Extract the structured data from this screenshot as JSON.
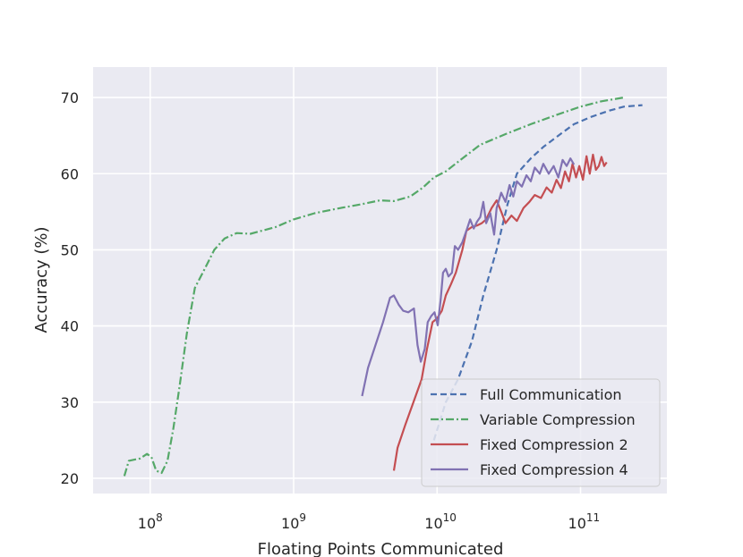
{
  "chart_data": {
    "type": "line",
    "title": "",
    "xlabel": "Floating Points Communicated",
    "ylabel": "Accuracy (%)",
    "xscale": "log",
    "xlim": [
      40000000.0,
      400000000000.0
    ],
    "ylim": [
      18,
      74
    ],
    "x_ticks": [
      {
        "value": 100000000.0,
        "base": "10",
        "exp": "8"
      },
      {
        "value": 1000000000.0,
        "base": "10",
        "exp": "9"
      },
      {
        "value": 10000000000.0,
        "base": "10",
        "exp": "10"
      },
      {
        "value": 100000000000.0,
        "base": "10",
        "exp": "11"
      }
    ],
    "y_ticks": [
      20,
      30,
      40,
      50,
      60,
      70
    ],
    "grid": true,
    "background": "#eaeaf2",
    "legend_position": "lower right",
    "series": [
      {
        "name": "Full Communication",
        "color": "#4c72b0",
        "dash": "dashed",
        "points": [
          [
            9500000000.0,
            25
          ],
          [
            11500000000.0,
            30
          ],
          [
            14000000000.0,
            33
          ],
          [
            17500000000.0,
            38
          ],
          [
            21000000000.0,
            44
          ],
          [
            26000000000.0,
            50
          ],
          [
            31000000000.0,
            56
          ],
          [
            36000000000.0,
            60
          ],
          [
            45000000000.0,
            62
          ],
          [
            55000000000.0,
            63.5
          ],
          [
            70000000000.0,
            65
          ],
          [
            90000000000.0,
            66.5
          ],
          [
            120000000000.0,
            67.5
          ],
          [
            160000000000.0,
            68.3
          ],
          [
            200000000000.0,
            68.8
          ],
          [
            270000000000.0,
            69
          ]
        ]
      },
      {
        "name": "Variable Compression",
        "color": "#55a868",
        "dash": "dashdot",
        "points": [
          [
            66000000.0,
            20.3
          ],
          [
            71000000.0,
            22.3
          ],
          [
            85000000.0,
            22.6
          ],
          [
            95000000.0,
            23.2
          ],
          [
            102000000.0,
            22.8
          ],
          [
            110000000.0,
            21
          ],
          [
            120000000.0,
            20.7
          ],
          [
            132000000.0,
            22.3
          ],
          [
            145000000.0,
            26.5
          ],
          [
            160000000.0,
            32
          ],
          [
            180000000.0,
            39
          ],
          [
            205000000.0,
            45
          ],
          [
            240000000.0,
            47.5
          ],
          [
            280000000.0,
            50
          ],
          [
            330000000.0,
            51.5
          ],
          [
            400000000.0,
            52.2
          ],
          [
            500000000.0,
            52.1
          ],
          [
            600000000.0,
            52.5
          ],
          [
            750000000.0,
            53
          ],
          [
            1000000000.0,
            54
          ],
          [
            1400000000.0,
            54.8
          ],
          [
            2000000000.0,
            55.4
          ],
          [
            3000000000.0,
            56
          ],
          [
            4000000000.0,
            56.5
          ],
          [
            5000000000.0,
            56.4
          ],
          [
            6500000000.0,
            57
          ],
          [
            8000000000.0,
            58.2
          ],
          [
            9500000000.0,
            59.5
          ],
          [
            11500000000.0,
            60.3
          ],
          [
            15000000000.0,
            62
          ],
          [
            20000000000.0,
            63.8
          ],
          [
            30000000000.0,
            65.2
          ],
          [
            45000000000.0,
            66.5
          ],
          [
            70000000000.0,
            67.8
          ],
          [
            100000000000.0,
            68.8
          ],
          [
            140000000000.0,
            69.5
          ],
          [
            200000000000.0,
            70
          ]
        ]
      },
      {
        "name": "Fixed Compression 2",
        "color": "#c44e52",
        "dash": "solid",
        "points": [
          [
            5000000000.0,
            21
          ],
          [
            5300000000.0,
            24
          ],
          [
            6000000000.0,
            27
          ],
          [
            7000000000.0,
            30.5
          ],
          [
            7800000000.0,
            33
          ],
          [
            8500000000.0,
            37
          ],
          [
            9300000000.0,
            40.5
          ],
          [
            10000000000.0,
            41
          ],
          [
            10800000000.0,
            42
          ],
          [
            11500000000.0,
            44
          ],
          [
            12500000000.0,
            45.5
          ],
          [
            13500000000.0,
            47
          ],
          [
            15000000000.0,
            50
          ],
          [
            16000000000.0,
            52.5
          ],
          [
            17500000000.0,
            53
          ],
          [
            19000000000.0,
            53.2
          ],
          [
            20500000000.0,
            53.5
          ],
          [
            22000000000.0,
            54
          ],
          [
            24000000000.0,
            55.5
          ],
          [
            26000000000.0,
            56.5
          ],
          [
            28000000000.0,
            55
          ],
          [
            30000000000.0,
            53.5
          ],
          [
            33000000000.0,
            54.5
          ],
          [
            36000000000.0,
            53.8
          ],
          [
            40000000000.0,
            55.5
          ],
          [
            44000000000.0,
            56.3
          ],
          [
            48000000000.0,
            57.2
          ],
          [
            53000000000.0,
            56.8
          ],
          [
            58000000000.0,
            58.2
          ],
          [
            63000000000.0,
            57.5
          ],
          [
            68000000000.0,
            59.2
          ],
          [
            73000000000.0,
            58.1
          ],
          [
            78000000000.0,
            60.3
          ],
          [
            83000000000.0,
            59
          ],
          [
            88000000000.0,
            61.3
          ],
          [
            93000000000.0,
            59.5
          ],
          [
            98000000000.0,
            61
          ],
          [
            104000000000.0,
            59.2
          ],
          [
            110000000000.0,
            62.3
          ],
          [
            116000000000.0,
            60
          ],
          [
            122000000000.0,
            62.5
          ],
          [
            128000000000.0,
            60.5
          ],
          [
            134000000000.0,
            61
          ],
          [
            140000000000.0,
            62.2
          ],
          [
            146000000000.0,
            61
          ],
          [
            152000000000.0,
            61.5
          ]
        ]
      },
      {
        "name": "Fixed Compression 4",
        "color": "#8172b3",
        "dash": "solid",
        "points": [
          [
            3000000000.0,
            30.8
          ],
          [
            3300000000.0,
            34.5
          ],
          [
            3800000000.0,
            38
          ],
          [
            4200000000.0,
            40.5
          ],
          [
            4700000000.0,
            43.7
          ],
          [
            5000000000.0,
            44
          ],
          [
            5400000000.0,
            42.8
          ],
          [
            5800000000.0,
            42
          ],
          [
            6300000000.0,
            41.8
          ],
          [
            6900000000.0,
            42.3
          ],
          [
            7300000000.0,
            37.5
          ],
          [
            7700000000.0,
            35.3
          ],
          [
            8200000000.0,
            37
          ],
          [
            8600000000.0,
            40.5
          ],
          [
            9100000000.0,
            41.3
          ],
          [
            9600000000.0,
            41.8
          ],
          [
            10100000000.0,
            40.1
          ],
          [
            10600000000.0,
            43.5
          ],
          [
            11000000000.0,
            47
          ],
          [
            11500000000.0,
            47.5
          ],
          [
            12000000000.0,
            46.5
          ],
          [
            12700000000.0,
            47
          ],
          [
            13300000000.0,
            50.5
          ],
          [
            14000000000.0,
            50
          ],
          [
            15000000000.0,
            51
          ],
          [
            16000000000.0,
            52.5
          ],
          [
            17000000000.0,
            54
          ],
          [
            18000000000.0,
            52.8
          ],
          [
            19000000000.0,
            53.7
          ],
          [
            20000000000.0,
            54.3
          ],
          [
            21000000000.0,
            56.3
          ],
          [
            22000000000.0,
            53.5
          ],
          [
            23500000000.0,
            54.8
          ],
          [
            25000000000.0,
            52
          ],
          [
            26000000000.0,
            55.5
          ],
          [
            28000000000.0,
            57.5
          ],
          [
            30000000000.0,
            56.3
          ],
          [
            32000000000.0,
            58.5
          ],
          [
            34000000000.0,
            57
          ],
          [
            36000000000.0,
            59
          ],
          [
            39000000000.0,
            58.3
          ],
          [
            42000000000.0,
            59.8
          ],
          [
            45000000000.0,
            59
          ],
          [
            48000000000.0,
            60.8
          ],
          [
            52000000000.0,
            60
          ],
          [
            55000000000.0,
            61.3
          ],
          [
            60000000000.0,
            60
          ],
          [
            65000000000.0,
            61
          ],
          [
            70000000000.0,
            59.5
          ],
          [
            75000000000.0,
            61.8
          ],
          [
            80000000000.0,
            61
          ],
          [
            85000000000.0,
            62
          ],
          [
            90000000000.0,
            61.2
          ]
        ]
      }
    ]
  }
}
